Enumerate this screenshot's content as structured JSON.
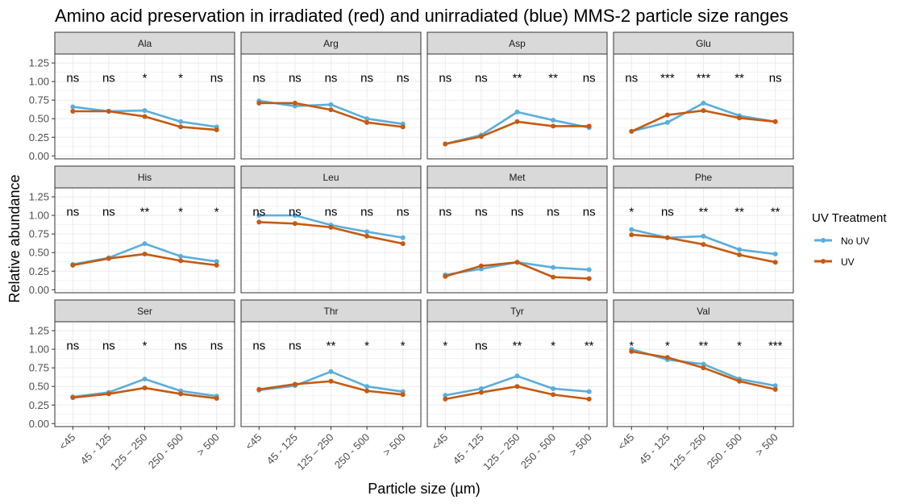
{
  "colors": {
    "no_uv": "#5aaedb",
    "uv": "#c55a11",
    "strip": "#d9d9d9",
    "grid": "#ebebeb"
  },
  "chart_data": {
    "type": "line",
    "title": "Amino acid preservation in irradiated (red) and unirradiated (blue) MMS-2 particle size ranges",
    "xlabel": "Particle size (µm)",
    "ylabel": "Relative abundance",
    "categories": [
      "<45",
      "45 - 125",
      "125 – 250",
      "250 - 500",
      "> 500"
    ],
    "yticks": [
      "0.00",
      "0.25",
      "0.50",
      "0.75",
      "1.00",
      "1.25"
    ],
    "ylim": [
      -0.04,
      1.37
    ],
    "grid": true,
    "legend": {
      "title": "UV Treatment",
      "placement": "right",
      "entries": [
        "No UV",
        "UV"
      ]
    },
    "panels": [
      {
        "name": "Ala",
        "sig": [
          "ns",
          "ns",
          "*",
          "*",
          "ns"
        ],
        "no_uv": [
          0.66,
          0.6,
          0.61,
          0.46,
          0.39
        ],
        "uv": [
          0.6,
          0.6,
          0.53,
          0.39,
          0.35
        ]
      },
      {
        "name": "Arg",
        "sig": [
          "ns",
          "ns",
          "ns",
          "ns",
          "ns"
        ],
        "no_uv": [
          0.74,
          0.67,
          0.69,
          0.5,
          0.43
        ],
        "uv": [
          0.71,
          0.71,
          0.62,
          0.45,
          0.39
        ]
      },
      {
        "name": "Asp",
        "sig": [
          "ns",
          "ns",
          "**",
          "**",
          "ns"
        ],
        "no_uv": [
          0.16,
          0.28,
          0.59,
          0.48,
          0.38
        ],
        "uv": [
          0.16,
          0.26,
          0.46,
          0.4,
          0.4
        ]
      },
      {
        "name": "Glu",
        "sig": [
          "ns",
          "***",
          "***",
          "**",
          "ns"
        ],
        "no_uv": [
          0.33,
          0.45,
          0.71,
          0.54,
          0.46
        ],
        "uv": [
          0.33,
          0.55,
          0.61,
          0.51,
          0.46
        ]
      },
      {
        "name": "His",
        "sig": [
          "ns",
          "ns",
          "**",
          "*",
          "*"
        ],
        "no_uv": [
          0.34,
          0.43,
          0.62,
          0.45,
          0.38
        ],
        "uv": [
          0.33,
          0.42,
          0.48,
          0.39,
          0.33
        ]
      },
      {
        "name": "Leu",
        "sig": [
          "ns",
          "ns",
          "ns",
          "ns",
          "ns"
        ],
        "no_uv": [
          1.0,
          1.0,
          0.87,
          0.78,
          0.7
        ],
        "uv": [
          0.91,
          0.89,
          0.84,
          0.72,
          0.62
        ]
      },
      {
        "name": "Met",
        "sig": [
          "ns",
          "ns",
          "ns",
          "ns",
          "ns"
        ],
        "no_uv": [
          0.2,
          0.28,
          0.37,
          0.3,
          0.27
        ],
        "uv": [
          0.18,
          0.32,
          0.37,
          0.17,
          0.15
        ]
      },
      {
        "name": "Phe",
        "sig": [
          "*",
          "ns",
          "**",
          "**",
          "**"
        ],
        "no_uv": [
          0.81,
          0.7,
          0.72,
          0.54,
          0.48
        ],
        "uv": [
          0.74,
          0.7,
          0.61,
          0.47,
          0.37
        ]
      },
      {
        "name": "Ser",
        "sig": [
          "ns",
          "ns",
          "*",
          "ns",
          "ns"
        ],
        "no_uv": [
          0.36,
          0.42,
          0.6,
          0.44,
          0.37
        ],
        "uv": [
          0.35,
          0.4,
          0.48,
          0.4,
          0.34
        ]
      },
      {
        "name": "Thr",
        "sig": [
          "ns",
          "ns",
          "**",
          "*",
          "*"
        ],
        "no_uv": [
          0.45,
          0.51,
          0.7,
          0.5,
          0.43
        ],
        "uv": [
          0.46,
          0.53,
          0.57,
          0.44,
          0.39
        ]
      },
      {
        "name": "Tyr",
        "sig": [
          "*",
          "ns",
          "**",
          "*",
          "**"
        ],
        "no_uv": [
          0.38,
          0.47,
          0.64,
          0.47,
          0.43
        ],
        "uv": [
          0.33,
          0.42,
          0.5,
          0.39,
          0.33
        ]
      },
      {
        "name": "Val",
        "sig": [
          "*",
          "*",
          "**",
          "*",
          "***"
        ],
        "no_uv": [
          1.0,
          0.86,
          0.8,
          0.6,
          0.51
        ],
        "uv": [
          0.97,
          0.89,
          0.75,
          0.57,
          0.46
        ]
      }
    ]
  }
}
